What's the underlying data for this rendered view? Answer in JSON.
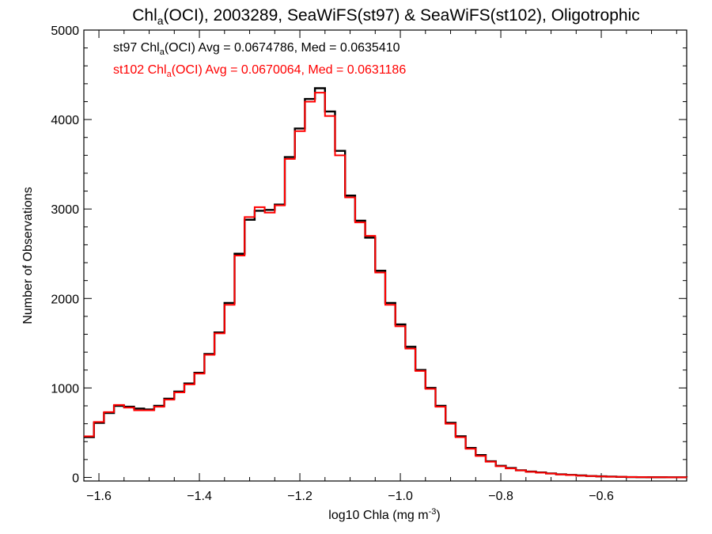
{
  "chart_data": {
    "type": "line",
    "step": true,
    "title": {
      "pre": "Chl",
      "sub": "a",
      "post": "(OCI), 2003289, SeaWiFS(st97) & SeaWiFS(st102), Oligotrophic"
    },
    "xlabel": {
      "pre": "log10 Chla (mg m",
      "sup": "-3",
      "post": ")"
    },
    "ylabel": "Number of Observations",
    "xlim": [
      -1.63,
      -0.43
    ],
    "ylim": [
      -40,
      5000
    ],
    "xticks": [
      -1.6,
      -1.4,
      -1.2,
      -1.0,
      -0.8,
      -0.6
    ],
    "xtick_labels": [
      "−1.6",
      "−1.4",
      "−1.2",
      "−1.0",
      "−0.8",
      "−0.6"
    ],
    "yticks": [
      0,
      1000,
      2000,
      3000,
      4000,
      5000
    ],
    "ytick_labels": [
      "0",
      "1000",
      "2000",
      "3000",
      "4000",
      "5000"
    ],
    "grid": false,
    "annotations": [
      {
        "pre": "st97 Chl",
        "sub": "a",
        "post": "(OCI) Avg = 0.0674786, Med = 0.0635410",
        "color": "#000000"
      },
      {
        "pre": "st102 Chl",
        "sub": "a",
        "post": "(OCI) Avg = 0.0670064, Med = 0.0631186",
        "color": "#ff0000"
      }
    ],
    "series": [
      {
        "color": "#000000",
        "x": [
          -1.63,
          -1.61,
          -1.59,
          -1.57,
          -1.55,
          -1.53,
          -1.51,
          -1.49,
          -1.47,
          -1.45,
          -1.43,
          -1.41,
          -1.39,
          -1.37,
          -1.35,
          -1.33,
          -1.31,
          -1.29,
          -1.27,
          -1.25,
          -1.23,
          -1.21,
          -1.19,
          -1.17,
          -1.15,
          -1.13,
          -1.11,
          -1.09,
          -1.07,
          -1.05,
          -1.03,
          -1.01,
          -0.99,
          -0.97,
          -0.95,
          -0.93,
          -0.91,
          -0.89,
          -0.87,
          -0.85,
          -0.83,
          -0.81,
          -0.79,
          -0.77,
          -0.75,
          -0.73,
          -0.71,
          -0.69,
          -0.67,
          -0.65,
          -0.63,
          -0.61,
          -0.59,
          -0.57,
          -0.55,
          -0.53,
          -0.51,
          -0.49,
          -0.47,
          -0.45,
          -0.43
        ],
        "y": [
          450,
          610,
          720,
          800,
          790,
          770,
          760,
          800,
          880,
          960,
          1050,
          1170,
          1380,
          1620,
          1950,
          2500,
          2880,
          2980,
          2990,
          3050,
          3580,
          3900,
          4230,
          4350,
          4090,
          3650,
          3150,
          2870,
          2680,
          2310,
          1950,
          1710,
          1460,
          1200,
          1000,
          800,
          610,
          460,
          330,
          250,
          180,
          130,
          105,
          80,
          65,
          55,
          45,
          35,
          28,
          22,
          16,
          12,
          9,
          6,
          4,
          3,
          2,
          2,
          1,
          1,
          0
        ]
      },
      {
        "color": "#ff0000",
        "x": [
          -1.63,
          -1.61,
          -1.59,
          -1.57,
          -1.55,
          -1.53,
          -1.51,
          -1.49,
          -1.47,
          -1.45,
          -1.43,
          -1.41,
          -1.39,
          -1.37,
          -1.35,
          -1.33,
          -1.31,
          -1.29,
          -1.27,
          -1.25,
          -1.23,
          -1.21,
          -1.19,
          -1.17,
          -1.15,
          -1.13,
          -1.11,
          -1.09,
          -1.07,
          -1.05,
          -1.03,
          -1.01,
          -0.99,
          -0.97,
          -0.95,
          -0.93,
          -0.91,
          -0.89,
          -0.87,
          -0.85,
          -0.83,
          -0.81,
          -0.79,
          -0.77,
          -0.75,
          -0.73,
          -0.71,
          -0.69,
          -0.67,
          -0.65,
          -0.63,
          -0.61,
          -0.59,
          -0.57,
          -0.55,
          -0.53,
          -0.51,
          -0.49,
          -0.47,
          -0.45,
          -0.43
        ],
        "y": [
          460,
          620,
          730,
          810,
          780,
          750,
          750,
          790,
          870,
          950,
          1040,
          1160,
          1370,
          1610,
          1930,
          2480,
          2910,
          3020,
          2960,
          3040,
          3560,
          3870,
          4200,
          4300,
          4040,
          3600,
          3130,
          2850,
          2700,
          2290,
          1930,
          1690,
          1440,
          1190,
          990,
          790,
          600,
          450,
          320,
          240,
          175,
          125,
          100,
          78,
          63,
          53,
          43,
          33,
          26,
          20,
          15,
          11,
          8,
          6,
          4,
          3,
          2,
          2,
          1,
          1,
          0
        ]
      }
    ]
  }
}
